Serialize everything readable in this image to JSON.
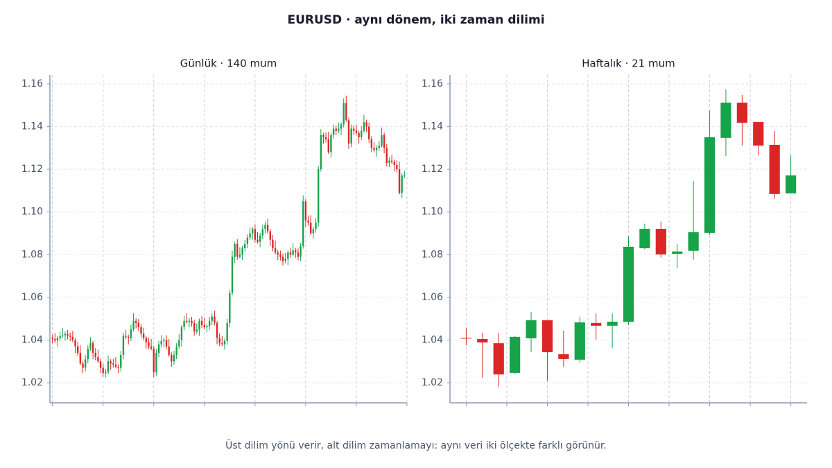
{
  "title": "EURUSD · aynı dönem, iki zaman dilimi",
  "caption": "Üst dilim yönü verir, alt dilim zamanlamayı: aynı veri iki ölçekte farklı görünür.",
  "chart_data": [
    {
      "type": "candlestick",
      "title": "Günlük · 140 mum",
      "up_color": "#16a34a",
      "down_color": "#dc2626",
      "grid": true,
      "ylim": [
        1.0106,
        1.1642
      ],
      "yticks": [
        1.02,
        1.04,
        1.06,
        1.08,
        {
          "value": 1.1,
          "label": "1.10"
        },
        1.12,
        1.14,
        1.16
      ],
      "open": [
        1.041,
        1.0405,
        1.0398,
        1.041,
        1.0418,
        1.0422,
        1.0428,
        1.042,
        1.0415,
        1.04,
        1.037,
        1.034,
        1.029,
        1.027,
        1.031,
        1.036,
        1.0385,
        1.034,
        1.032,
        1.03,
        1.027,
        1.0245,
        1.025,
        1.03,
        1.029,
        1.0285,
        1.0275,
        1.027,
        1.033,
        1.042,
        1.0415,
        1.041,
        1.045,
        1.049,
        1.048,
        1.046,
        1.043,
        1.041,
        1.039,
        1.037,
        1.036,
        1.025,
        1.034,
        1.038,
        1.0395,
        1.04,
        1.037,
        1.033,
        1.03,
        1.033,
        1.037,
        1.04,
        1.046,
        1.049,
        1.0485,
        1.049,
        1.048,
        1.044,
        1.045,
        1.049,
        1.047,
        1.046,
        1.0465,
        1.049,
        1.051,
        1.048,
        1.041,
        1.0385,
        1.038,
        1.0395,
        1.048,
        1.062,
        1.079,
        1.085,
        1.079,
        1.08,
        1.083,
        1.085,
        1.088,
        1.09,
        1.092,
        1.087,
        1.086,
        1.089,
        1.092,
        1.094,
        1.091,
        1.087,
        1.083,
        1.081,
        1.08,
        1.079,
        1.077,
        1.078,
        1.081,
        1.08,
        1.082,
        1.081,
        1.079,
        1.084,
        1.105,
        1.096,
        1.095,
        1.09,
        1.092,
        1.095,
        1.12,
        1.136,
        1.135,
        1.134,
        1.128,
        1.136,
        1.139,
        1.138,
        1.139,
        1.141,
        1.151,
        1.143,
        1.132,
        1.139,
        1.138,
        1.137,
        1.135,
        1.138,
        1.142,
        1.14,
        1.134,
        1.13,
        1.129,
        1.13,
        1.131,
        1.136,
        1.13,
        1.123,
        1.124,
        1.1235,
        1.122,
        1.12,
        1.109,
        1.117
      ],
      "high": [
        1.0425,
        1.0433,
        1.042,
        1.044,
        1.0457,
        1.044,
        1.0447,
        1.0435,
        1.0443,
        1.041,
        1.0392,
        1.0375,
        1.0302,
        1.0329,
        1.0375,
        1.0413,
        1.0395,
        1.0362,
        1.0355,
        1.0312,
        1.0289,
        1.0265,
        1.0328,
        1.031,
        1.0312,
        1.032,
        1.0287,
        1.0349,
        1.0435,
        1.0448,
        1.0425,
        1.0472,
        1.0525,
        1.0502,
        1.0499,
        1.0475,
        1.0458,
        1.042,
        1.0412,
        1.0405,
        1.0372,
        1.0359,
        1.0395,
        1.0423,
        1.041,
        1.0422,
        1.0405,
        1.0342,
        1.0349,
        1.0385,
        1.0428,
        1.047,
        1.0512,
        1.0525,
        1.0502,
        1.0509,
        1.0495,
        1.0478,
        1.05,
        1.0512,
        1.0505,
        1.0477,
        1.0509,
        1.0525,
        1.0538,
        1.049,
        1.0432,
        1.042,
        1.0407,
        1.0499,
        1.0635,
        1.0818,
        1.086,
        1.0872,
        1.0835,
        1.0842,
        1.0869,
        1.0895,
        1.0928,
        1.093,
        1.0942,
        1.0905,
        1.0902,
        1.0939,
        1.0955,
        1.0968,
        1.092,
        1.0892,
        1.0865,
        1.0822,
        1.0819,
        1.0805,
        1.0808,
        1.082,
        1.0832,
        1.0855,
        1.0832,
        1.0829,
        1.0855,
        1.1078,
        1.106,
        1.0982,
        1.0985,
        1.0932,
        1.0969,
        1.1215,
        1.1388,
        1.137,
        1.1372,
        1.1375,
        1.1372,
        1.1409,
        1.1405,
        1.1418,
        1.142,
        1.1532,
        1.1545,
        1.1442,
        1.1409,
        1.1405,
        1.1408,
        1.138,
        1.1402,
        1.1455,
        1.1432,
        1.1419,
        1.1355,
        1.1328,
        1.131,
        1.1332,
        1.1395,
        1.1372,
        1.1319,
        1.1255,
        1.1268,
        1.1245,
        1.1242,
        1.1235,
        1.1182,
        1.1194
      ],
      "low": [
        1.0385,
        1.0387,
        1.0368,
        1.0396,
        1.041,
        1.0397,
        1.0403,
        1.0395,
        1.0389,
        1.034,
        1.0326,
        1.0282,
        1.0245,
        1.0253,
        1.029,
        1.0349,
        1.031,
        1.0306,
        1.0292,
        1.0245,
        1.0228,
        1.0225,
        1.0239,
        1.026,
        1.0271,
        1.0267,
        1.0245,
        1.0253,
        1.031,
        1.0404,
        1.038,
        1.0396,
        1.0442,
        1.0455,
        1.0443,
        1.041,
        1.0399,
        1.036,
        1.0356,
        1.0352,
        1.0225,
        1.0233,
        1.032,
        1.0369,
        1.0365,
        1.0356,
        1.0322,
        1.0275,
        1.0283,
        1.031,
        1.0359,
        1.037,
        1.0446,
        1.0477,
        1.046,
        1.0463,
        1.042,
        1.0429,
        1.042,
        1.0456,
        1.0452,
        1.0435,
        1.0448,
        1.047,
        1.0469,
        1.038,
        1.0371,
        1.0372,
        1.0355,
        1.0378,
        1.046,
        1.0609,
        1.076,
        1.0776,
        1.0782,
        1.0775,
        1.0813,
        1.083,
        1.0869,
        1.087,
        1.0856,
        1.0852,
        1.0835,
        1.0873,
        1.09,
        1.0899,
        1.084,
        1.0816,
        1.0802,
        1.0775,
        1.0773,
        1.075,
        1.0759,
        1.075,
        1.0786,
        1.0792,
        1.0785,
        1.0773,
        1.077,
        1.0829,
        1.093,
        1.0936,
        1.0892,
        1.0875,
        1.0903,
        1.093,
        1.1189,
        1.132,
        1.1326,
        1.1272,
        1.1255,
        1.1343,
        1.136,
        1.1369,
        1.136,
        1.1396,
        1.1422,
        1.1295,
        1.1303,
        1.136,
        1.1359,
        1.132,
        1.1336,
        1.1372,
        1.1375,
        1.1323,
        1.128,
        1.1279,
        1.126,
        1.1286,
        1.1302,
        1.1275,
        1.1213,
        1.121,
        1.1224,
        1.119,
        1.1186,
        1.1082,
        1.1065,
        1.1158
      ],
      "close": [
        1.0405,
        1.0398,
        1.041,
        1.0418,
        1.0422,
        1.0428,
        1.042,
        1.0415,
        1.04,
        1.037,
        1.034,
        1.029,
        1.027,
        1.031,
        1.036,
        1.0385,
        1.034,
        1.032,
        1.03,
        1.027,
        1.0245,
        1.025,
        1.03,
        1.029,
        1.0285,
        1.0275,
        1.027,
        1.033,
        1.042,
        1.0415,
        1.041,
        1.045,
        1.049,
        1.048,
        1.046,
        1.043,
        1.041,
        1.039,
        1.037,
        1.036,
        1.025,
        1.034,
        1.038,
        1.0395,
        1.04,
        1.037,
        1.033,
        1.03,
        1.033,
        1.037,
        1.04,
        1.046,
        1.049,
        1.0485,
        1.049,
        1.048,
        1.044,
        1.045,
        1.049,
        1.047,
        1.046,
        1.0465,
        1.049,
        1.051,
        1.048,
        1.041,
        1.0385,
        1.038,
        1.0395,
        1.048,
        1.062,
        1.079,
        1.085,
        1.079,
        1.08,
        1.083,
        1.085,
        1.088,
        1.09,
        1.092,
        1.087,
        1.086,
        1.089,
        1.092,
        1.094,
        1.091,
        1.087,
        1.083,
        1.081,
        1.08,
        1.079,
        1.077,
        1.078,
        1.081,
        1.08,
        1.082,
        1.081,
        1.079,
        1.084,
        1.105,
        1.096,
        1.095,
        1.09,
        1.092,
        1.095,
        1.12,
        1.136,
        1.135,
        1.134,
        1.128,
        1.136,
        1.139,
        1.138,
        1.139,
        1.141,
        1.151,
        1.143,
        1.132,
        1.139,
        1.138,
        1.137,
        1.135,
        1.138,
        1.142,
        1.14,
        1.134,
        1.13,
        1.129,
        1.13,
        1.131,
        1.136,
        1.13,
        1.123,
        1.124,
        1.1235,
        1.122,
        1.12,
        1.109,
        1.117,
        1.1175
      ]
    },
    {
      "type": "candlestick",
      "title": "Haftalık · 21 mum",
      "up_color": "#16a34a",
      "down_color": "#dc2626",
      "grid": true,
      "ylim": [
        1.0106,
        1.1642
      ],
      "yticks": [
        1.02,
        1.04,
        1.06,
        1.08,
        {
          "value": 1.1,
          "label": "1.10"
        },
        1.12,
        1.14,
        1.16
      ],
      "open": [
        1.041,
        1.0405,
        1.0385,
        1.0246,
        1.0408,
        1.0493,
        1.0334,
        1.0308,
        1.048,
        1.0467,
        1.0486,
        1.083,
        1.0921,
        1.0804,
        1.0818,
        1.0902,
        1.1347,
        1.1512,
        1.1421,
        1.1314,
        1.1087
      ],
      "high": [
        1.0457,
        1.0434,
        1.0434,
        1.042,
        1.0531,
        1.0493,
        1.0444,
        1.0509,
        1.0525,
        1.0525,
        1.0886,
        1.0945,
        1.0955,
        1.085,
        1.1145,
        1.1474,
        1.1574,
        1.1548,
        1.1421,
        1.1379,
        1.1265
      ],
      "low": [
        1.0375,
        1.0223,
        1.0181,
        1.024,
        1.0343,
        1.021,
        1.0275,
        1.0295,
        1.0402,
        1.0363,
        1.047,
        1.0825,
        1.0786,
        1.0737,
        1.0776,
        1.0893,
        1.1262,
        1.1311,
        1.1265,
        1.1062,
        1.1087
      ],
      "close": [
        1.0408,
        1.0389,
        1.0239,
        1.0415,
        1.0493,
        1.0343,
        1.0311,
        1.0483,
        1.0467,
        1.0486,
        1.0837,
        1.0921,
        1.0801,
        1.0815,
        1.0905,
        1.135,
        1.1512,
        1.1418,
        1.1311,
        1.1084,
        1.1171
      ]
    }
  ]
}
